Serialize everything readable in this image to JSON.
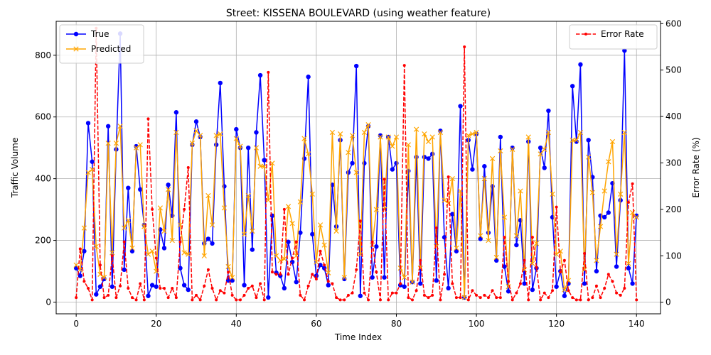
{
  "chart_data": {
    "type": "line",
    "title": "Street: KISSENA BOULEVARD (using weather feature)",
    "xlabel": "Time Index",
    "ylabel_left": "Traffic Volume",
    "ylabel_right": "Error Rate (%)",
    "xlim": [
      -5,
      146
    ],
    "ylim_left": [
      -38,
      910
    ],
    "ylim_right": [
      -25,
      605
    ],
    "xticks": [
      0,
      20,
      40,
      60,
      80,
      100,
      120,
      140
    ],
    "yticks_left": [
      0,
      200,
      400,
      600,
      800
    ],
    "yticks_right": [
      0,
      100,
      200,
      300,
      400,
      500,
      600
    ],
    "grid": true,
    "legend_left_position": "upper-left",
    "legend_right_position": "upper-right",
    "series": [
      {
        "name": "True",
        "axis": "left",
        "color": "#0000ff",
        "marker": "circle",
        "values": [
          110,
          85,
          165,
          580,
          455,
          25,
          50,
          75,
          570,
          50,
          495,
          870,
          105,
          370,
          165,
          505,
          365,
          250,
          20,
          55,
          50,
          235,
          175,
          380,
          280,
          615,
          110,
          55,
          40,
          510,
          585,
          535,
          190,
          205,
          190,
          510,
          710,
          375,
          70,
          70,
          560,
          500,
          55,
          500,
          170,
          550,
          735,
          460,
          15,
          280,
          95,
          85,
          45,
          195,
          130,
          65,
          225,
          465,
          730,
          220,
          85,
          120,
          110,
          55,
          380,
          245,
          525,
          75,
          420,
          450,
          765,
          20,
          450,
          570,
          80,
          180,
          540,
          80,
          535,
          430,
          450,
          55,
          50,
          425,
          65,
          470,
          60,
          470,
          465,
          480,
          70,
          555,
          210,
          45,
          285,
          165,
          635,
          15,
          525,
          430,
          545,
          205,
          440,
          225,
          375,
          135,
          535,
          115,
          35,
          500,
          185,
          265,
          60,
          520,
          40,
          110,
          500,
          435,
          620,
          275,
          50,
          100,
          20,
          60,
          700,
          520,
          770,
          60,
          525,
          405,
          100,
          280,
          275,
          290,
          385,
          115,
          330,
          815,
          110,
          60,
          280
        ]
      },
      {
        "name": "Predicted",
        "axis": "left",
        "color": "#ffa500",
        "marker": "x",
        "values": [
          120,
          105,
          240,
          420,
          430,
          180,
          90,
          80,
          515,
          160,
          515,
          570,
          240,
          265,
          175,
          500,
          510,
          245,
          155,
          165,
          100,
          305,
          230,
          365,
          200,
          550,
          250,
          160,
          155,
          515,
          555,
          540,
          150,
          345,
          250,
          540,
          545,
          305,
          115,
          80,
          530,
          505,
          220,
          345,
          230,
          500,
          440,
          440,
          330,
          450,
          150,
          135,
          140,
          310,
          255,
          150,
          325,
          530,
          480,
          350,
          130,
          250,
          185,
          95,
          550,
          230,
          545,
          80,
          485,
          540,
          420,
          155,
          550,
          575,
          185,
          300,
          535,
          300,
          535,
          505,
          535,
          110,
          80,
          510,
          65,
          560,
          110,
          545,
          520,
          535,
          180,
          550,
          330,
          320,
          400,
          175,
          360,
          15,
          540,
          545,
          550,
          215,
          400,
          200,
          465,
          145,
          490,
          275,
          50,
          495,
          215,
          360,
          105,
          535,
          125,
          190,
          480,
          495,
          550,
          350,
          155,
          165,
          40,
          70,
          525,
          525,
          550,
          105,
          470,
          355,
          135,
          245,
          360,
          455,
          520,
          155,
          350,
          550,
          125,
          290,
          275
        ]
      },
      {
        "name": "Error Rate",
        "axis": "right",
        "color": "#ff0000",
        "marker": "dot",
        "values": [
          10,
          115,
          45,
          30,
          5,
          590,
          80,
          10,
          15,
          100,
          10,
          35,
          130,
          30,
          10,
          5,
          40,
          5,
          395,
          200,
          95,
          30,
          30,
          10,
          30,
          10,
          130,
          200,
          290,
          5,
          15,
          5,
          35,
          70,
          30,
          5,
          25,
          20,
          65,
          15,
          5,
          5,
          15,
          30,
          35,
          10,
          40,
          5,
          495,
          65,
          60,
          60,
          200,
          60,
          95,
          130,
          15,
          5,
          35,
          60,
          50,
          110,
          80,
          45,
          40,
          10,
          5,
          5,
          15,
          20,
          70,
          175,
          20,
          5,
          130,
          65,
          5,
          265,
          5,
          20,
          20,
          40,
          510,
          10,
          5,
          25,
          90,
          15,
          10,
          15,
          160,
          5,
          60,
          270,
          40,
          10,
          10,
          550,
          5,
          25,
          15,
          10,
          15,
          10,
          25,
          10,
          10,
          140,
          45,
          5,
          20,
          40,
          90,
          5,
          140,
          75,
          5,
          20,
          10,
          25,
          205,
          65,
          90,
          25,
          10,
          5,
          5,
          105,
          5,
          10,
          35,
          10,
          30,
          60,
          45,
          20,
          15,
          30,
          215,
          255,
          5
        ]
      }
    ]
  }
}
